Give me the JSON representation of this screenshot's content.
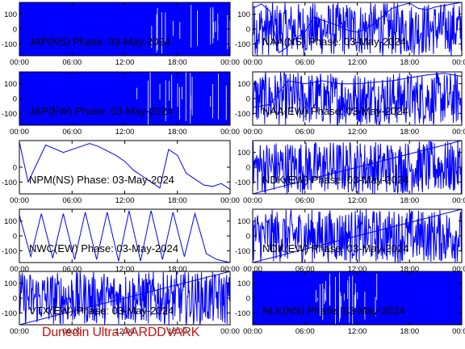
{
  "footer": {
    "text": "Dunedin Ultra AARDDVARK",
    "color": "#cc1010"
  },
  "colors": {
    "trace": "#0000ff",
    "frame": "#000000",
    "background": "#ffffff"
  },
  "chart_data": [
    {
      "type": "line",
      "title": "JAP(NS) Phase: 03-May-2024",
      "xlabel": "",
      "ylabel": "",
      "x_ticks": [
        "00:00",
        "06:00",
        "12:00",
        "18:00",
        "00:00"
      ],
      "xlim": [
        0,
        24
      ],
      "y_ticks": [
        100,
        0,
        -100
      ],
      "ylim": [
        -180,
        180
      ],
      "grid": false,
      "series": [
        {
          "x": [
            0,
            24
          ],
          "y": [
            -180,
            180
          ]
        }
      ]
    },
    {
      "type": "line",
      "title": "NAA(NS) Phase: 03-May-2024",
      "xlabel": "",
      "ylabel": "",
      "x_ticks": [
        "00:00",
        "06:00",
        "12:00",
        "18:00",
        "00:00"
      ],
      "xlim": [
        0,
        24
      ],
      "y_ticks": [
        100,
        0,
        -100
      ],
      "ylim": [
        -180,
        180
      ],
      "grid": false,
      "series": [
        {
          "x": [
            0,
            1,
            2,
            3,
            4,
            5,
            6,
            7,
            8,
            9,
            10,
            11,
            12,
            13,
            14,
            15,
            16,
            17,
            18,
            19,
            20,
            21,
            22,
            23,
            24
          ],
          "y": [
            140,
            170,
            120,
            -160,
            -120,
            -60,
            -20,
            80,
            60,
            40,
            20,
            -10,
            -20,
            0,
            40,
            90,
            140,
            160,
            175,
            140,
            130,
            150,
            160,
            170,
            180
          ]
        }
      ]
    },
    {
      "type": "line",
      "title": "JAP(EW) Phase: 03-May-2024",
      "xlabel": "",
      "ylabel": "",
      "x_ticks": [
        "00:00",
        "06:00",
        "12:00",
        "18:00",
        "00:00"
      ],
      "xlim": [
        0,
        24
      ],
      "y_ticks": [
        100,
        0,
        -100
      ],
      "ylim": [
        -180,
        180
      ],
      "grid": false,
      "series": [
        {
          "x": [
            0,
            24
          ],
          "y": [
            -180,
            180
          ]
        }
      ]
    },
    {
      "type": "line",
      "title": "NAA(EW) Phase: 03-May-2024",
      "xlabel": "",
      "ylabel": "",
      "x_ticks": [
        "00:00",
        "06:00",
        "12:00",
        "18:00",
        "00:00"
      ],
      "xlim": [
        0,
        24
      ],
      "y_ticks": [
        100,
        0,
        -100
      ],
      "ylim": [
        -180,
        180
      ],
      "grid": false,
      "series": [
        {
          "x": [
            0,
            2,
            4,
            6,
            8,
            10,
            12,
            14,
            16,
            18,
            20,
            22,
            24
          ],
          "y": [
            -60,
            -40,
            120,
            100,
            120,
            100,
            100,
            110,
            120,
            140,
            160,
            170,
            150
          ]
        }
      ]
    },
    {
      "type": "line",
      "title": "NPM(NS) Phase: 03-May-2024",
      "xlabel": "",
      "ylabel": "",
      "x_ticks": [
        "00:00",
        "06:00",
        "12:00",
        "18:00",
        "00:00"
      ],
      "xlim": [
        0,
        24
      ],
      "y_ticks": [
        0,
        -100
      ],
      "ylim": [
        -180,
        180
      ],
      "grid": false,
      "series": [
        {
          "x": [
            0,
            1,
            3,
            5,
            7,
            8,
            9,
            10,
            11,
            12,
            13,
            14,
            15,
            16,
            17,
            18,
            19,
            20,
            21,
            22,
            23,
            24
          ],
          "y": [
            170,
            -100,
            150,
            100,
            140,
            160,
            140,
            110,
            80,
            40,
            -20,
            -60,
            -100,
            -140,
            120,
            80,
            -40,
            -80,
            -120,
            -130,
            -110,
            -150
          ]
        }
      ]
    },
    {
      "type": "line",
      "title": "NDK(EW) Phase: 03-May-2024",
      "xlabel": "",
      "ylabel": "",
      "x_ticks": [
        "00:00",
        "06:00",
        "12:00",
        "18:00",
        "00:00"
      ],
      "xlim": [
        0,
        24
      ],
      "y_ticks": [
        100,
        0,
        -100
      ],
      "ylim": [
        -180,
        180
      ],
      "grid": false,
      "series": [
        {
          "x": [
            0,
            24
          ],
          "y": [
            -180,
            180
          ]
        }
      ]
    },
    {
      "type": "line",
      "title": "NWC(EW) Phase: 03-May-2024",
      "xlabel": "",
      "ylabel": "",
      "x_ticks": [
        "00:00",
        "06:00",
        "12:00",
        "18:00",
        "00:00"
      ],
      "xlim": [
        0,
        24
      ],
      "y_ticks": [
        100,
        0,
        -100
      ],
      "ylim": [
        -180,
        180
      ],
      "grid": false,
      "series": [
        {
          "x": [
            0,
            1.3,
            2.5,
            3.8,
            5,
            6.3,
            7.5,
            8.8,
            10,
            11.3,
            12.5,
            13.8,
            15,
            16.3,
            17.5,
            18.8,
            20,
            21.3,
            22.5,
            24
          ],
          "y": [
            140,
            -140,
            150,
            -150,
            150,
            -160,
            160,
            -160,
            160,
            -170,
            170,
            -170,
            170,
            -160,
            160,
            -140,
            150,
            -120,
            -160,
            -180
          ]
        }
      ]
    },
    {
      "type": "line",
      "title": "NDK(EW) Phase: 03-May-2024",
      "xlabel": "",
      "ylabel": "",
      "x_ticks": [
        "00:00",
        "06:00",
        "12:00",
        "18:00",
        "00:00"
      ],
      "xlim": [
        0,
        24
      ],
      "y_ticks": [
        100,
        0,
        -100
      ],
      "ylim": [
        -180,
        180
      ],
      "grid": false,
      "series": [
        {
          "x": [
            0,
            24
          ],
          "y": [
            -180,
            180
          ]
        }
      ]
    },
    {
      "type": "line",
      "title": "VTX(EW) Phase: 03-May-2024",
      "xlabel": "",
      "ylabel": "",
      "x_ticks": [
        "00:00",
        "06:00",
        "12:00",
        "18:00",
        "00:00"
      ],
      "xlim": [
        0,
        24
      ],
      "y_ticks": [
        100,
        0,
        -100
      ],
      "ylim": [
        -180,
        180
      ],
      "grid": false,
      "series": [
        {
          "x": [
            0,
            24
          ],
          "y": [
            -180,
            180
          ]
        }
      ]
    },
    {
      "type": "line",
      "title": "NLK(NS) Phase: 03-May-2024",
      "xlabel": "",
      "ylabel": "",
      "x_ticks": [
        "00:00",
        "06:00",
        "12:00",
        "18:00",
        "00:00"
      ],
      "xlim": [
        0,
        24
      ],
      "y_ticks": [
        100,
        0,
        -100
      ],
      "ylim": [
        -180,
        180
      ],
      "grid": false,
      "series": [
        {
          "x": [
            0,
            24
          ],
          "y": [
            -180,
            180
          ]
        }
      ]
    }
  ]
}
